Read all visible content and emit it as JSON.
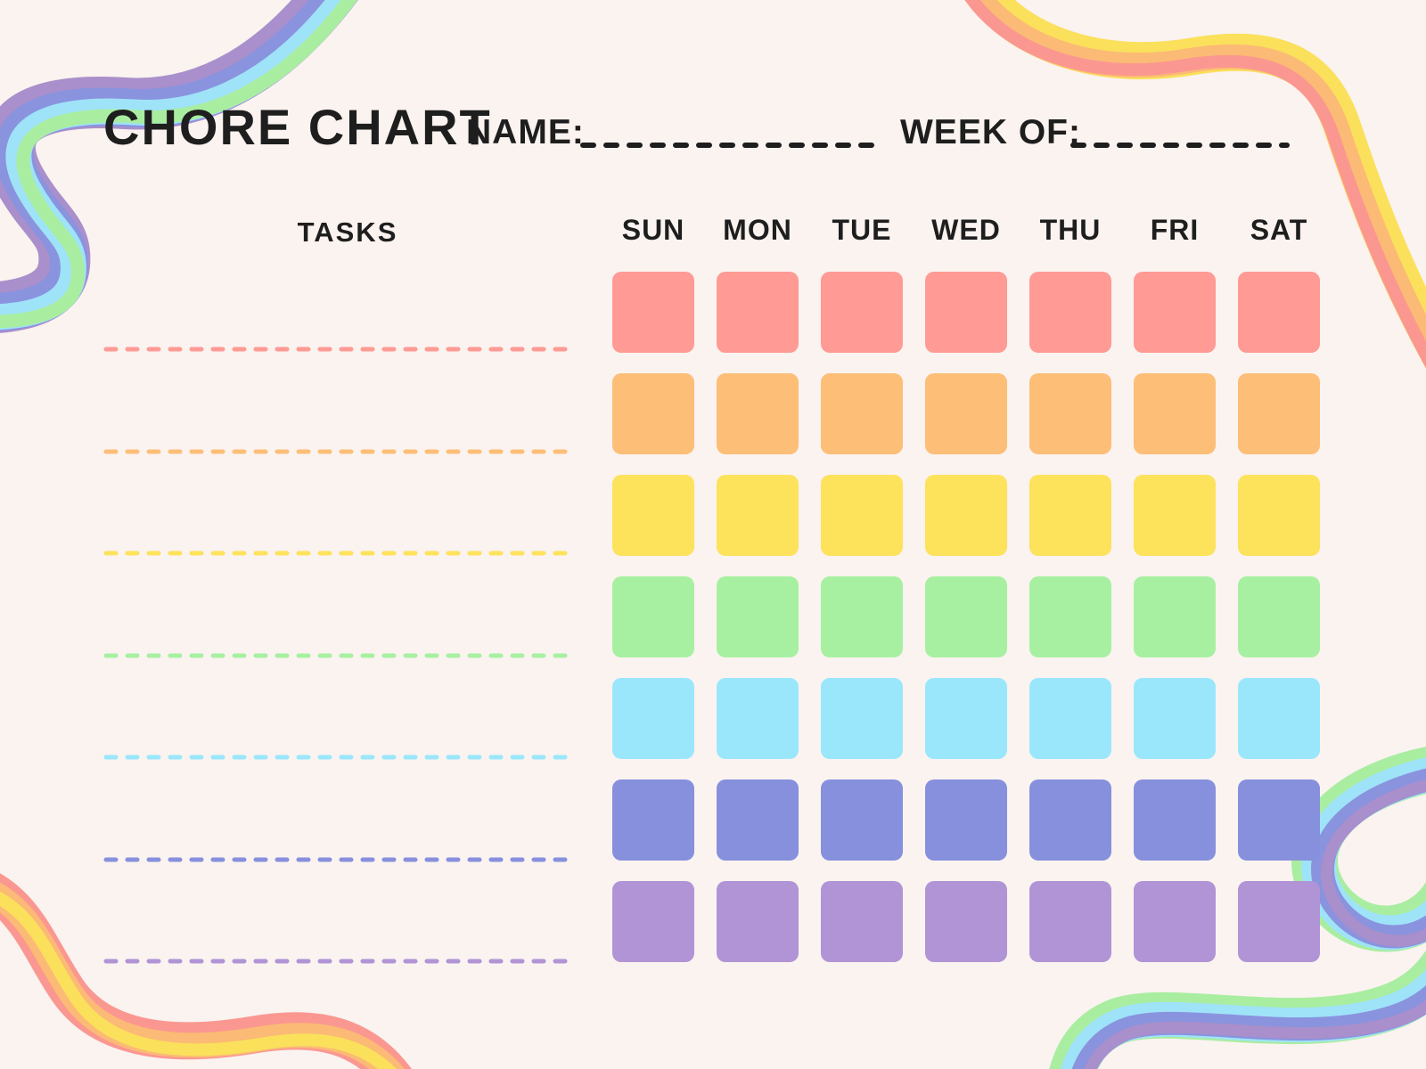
{
  "page": {
    "background": "#FAF3F0",
    "text_color": "#1E1E1E"
  },
  "header": {
    "title": "CHORE CHART",
    "name_label": "NAME:",
    "week_of_label": "WEEK OF:",
    "fill_line_color": "#1E1E1E"
  },
  "table": {
    "tasks_header": "TASKS",
    "days": [
      "SUN",
      "MON",
      "TUE",
      "WED",
      "THU",
      "FRI",
      "SAT"
    ],
    "rows": [
      {
        "color_name": "salmon-red",
        "color": "#FF9A94"
      },
      {
        "color_name": "orange",
        "color": "#FDBE77"
      },
      {
        "color_name": "yellow",
        "color": "#FDE25C"
      },
      {
        "color_name": "green",
        "color": "#A8F0A1"
      },
      {
        "color_name": "sky-blue",
        "color": "#9AE7FC"
      },
      {
        "color_name": "periwinkle",
        "color": "#8790DC"
      },
      {
        "color_name": "purple",
        "color": "#B094D5"
      }
    ]
  },
  "decorations": {
    "ribbons": {
      "top_left": {
        "colors": [
          "#A98FCB",
          "#8A93DE",
          "#9EE3F8",
          "#A9EDA1"
        ]
      },
      "top_right": {
        "colors": [
          "#FBE05C",
          "#FBBA75",
          "#FB9791"
        ]
      },
      "bottom_left": {
        "colors": [
          "#FB9791",
          "#FBBA75",
          "#FBE05C"
        ]
      },
      "bottom_right": {
        "colors": [
          "#A9EDA1",
          "#9EE3F8",
          "#8A93DE",
          "#A98FCB"
        ]
      }
    }
  }
}
